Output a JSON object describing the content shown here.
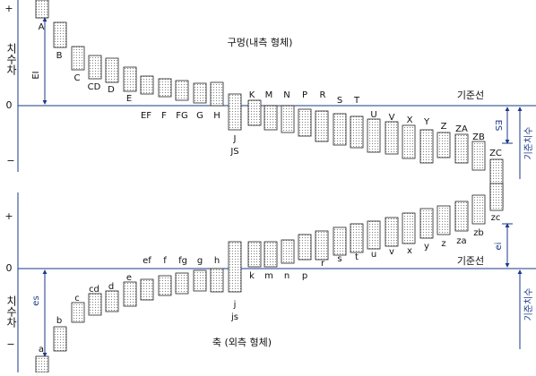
{
  "holes": {
    "title": "구멍(내측 형체)",
    "labels": [
      "A",
      "B",
      "C",
      "CD",
      "D",
      "E",
      "EF",
      "F",
      "FG",
      "G",
      "H",
      "J",
      "JS",
      "K",
      "M",
      "N",
      "P",
      "R",
      "S",
      "T",
      "U",
      "V",
      "X",
      "Y",
      "Z",
      "ZA",
      "ZB",
      "ZC"
    ],
    "plus": "+",
    "zero": "0",
    "minus": "−",
    "deviation": "치수차",
    "lower_deviation": "EI",
    "upper_deviation": "ES",
    "baseline": "기준선",
    "basic_size": "기준치수"
  },
  "shafts": {
    "title": "축 (외측 형체)",
    "labels": [
      "a",
      "b",
      "c",
      "cd",
      "d",
      "e",
      "ef",
      "f",
      "fg",
      "g",
      "h",
      "j",
      "js",
      "k",
      "m",
      "n",
      "p",
      "r",
      "s",
      "t",
      "u",
      "v",
      "x",
      "y",
      "z",
      "za",
      "zb",
      "zc"
    ],
    "plus": "+",
    "zero": "0",
    "minus": "−",
    "deviation": "치수차",
    "upper_deviation": "es",
    "lower_deviation": "ei",
    "baseline": "기준선",
    "basic_size": "기준치수"
  }
}
